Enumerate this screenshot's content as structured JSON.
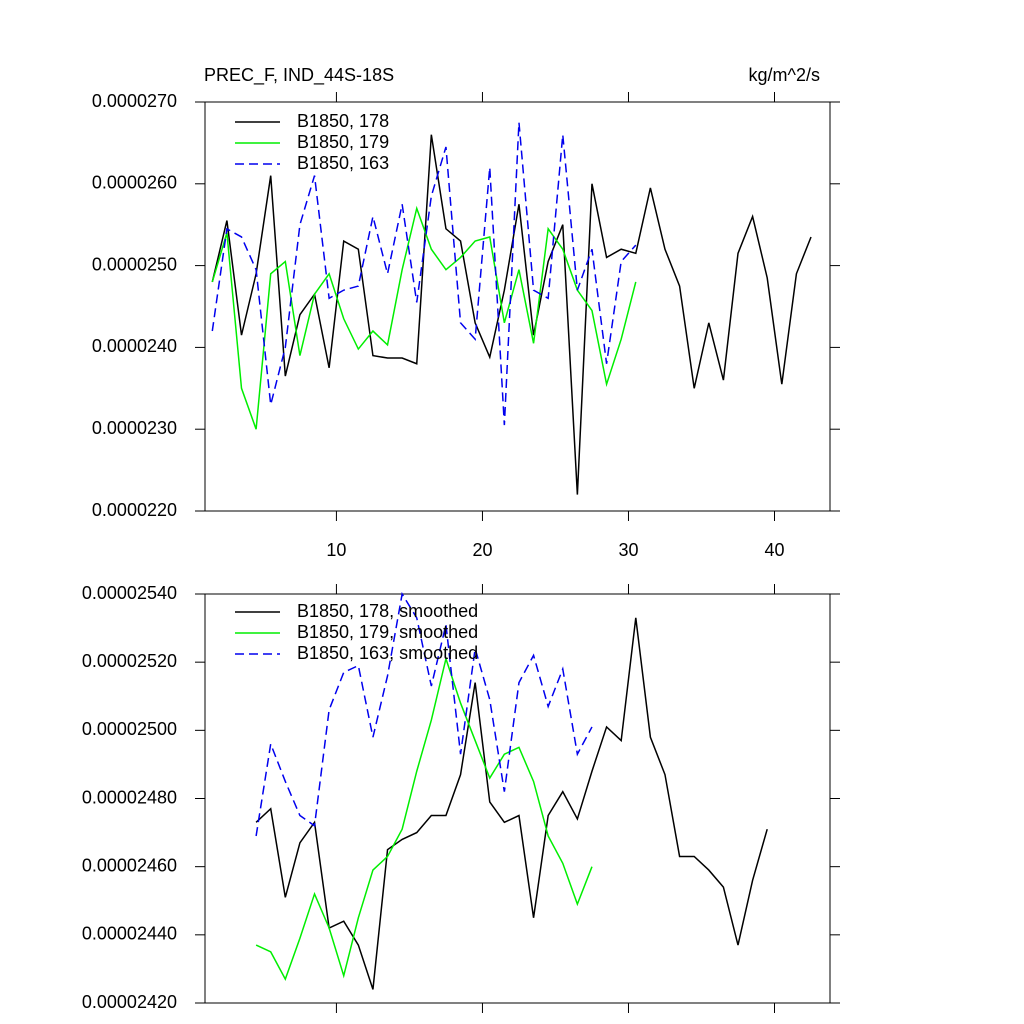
{
  "chart_data": [
    {
      "type": "line",
      "title": "PREC_F, IND_44S-18S",
      "subtitle": "kg/m^2/s",
      "x": [
        1.5,
        2.5,
        3.5,
        4.5,
        5.5,
        6.5,
        7.5,
        8.5,
        9.5,
        10.5,
        11.5,
        12.5,
        13.5,
        14.5,
        15.5,
        16.5,
        17.5,
        18.5,
        19.5,
        20.5,
        21.5,
        22.5,
        23.5,
        24.5,
        25.5,
        26.5,
        27.5,
        28.5,
        29.5,
        30.5,
        31.5,
        32.5,
        33.5,
        34.5,
        35.5,
        36.5,
        37.5,
        38.5,
        39.5,
        40.5,
        41.5,
        42.5
      ],
      "series": [
        {
          "name": "B1850, 178",
          "color": "#000000",
          "line_style": "solid",
          "values": [
            2.48e-05,
            2.555e-05,
            2.415e-05,
            2.49e-05,
            2.61e-05,
            2.365e-05,
            2.44e-05,
            2.465e-05,
            2.375e-05,
            2.53e-05,
            2.52e-05,
            2.39e-05,
            2.387e-05,
            2.387e-05,
            2.38e-05,
            2.66e-05,
            2.545e-05,
            2.53e-05,
            2.43e-05,
            2.388e-05,
            2.47e-05,
            2.575e-05,
            2.415e-05,
            2.505e-05,
            2.55e-05,
            2.22e-05,
            2.6e-05,
            2.51e-05,
            2.52e-05,
            2.515e-05,
            2.595e-05,
            2.52e-05,
            2.475e-05,
            2.35e-05,
            2.43e-05,
            2.36e-05,
            2.515e-05,
            2.56e-05,
            2.485e-05,
            2.355e-05,
            2.49e-05,
            2.535e-05
          ]
        },
        {
          "name": "B1850, 179",
          "color": "#00ee00",
          "line_style": "solid",
          "values": [
            2.48e-05,
            2.54e-05,
            2.35e-05,
            2.3e-05,
            2.49e-05,
            2.505e-05,
            2.39e-05,
            2.465e-05,
            2.49e-05,
            2.435e-05,
            2.398e-05,
            2.42e-05,
            2.403e-05,
            2.495e-05,
            2.57e-05,
            2.52e-05,
            2.495e-05,
            2.51e-05,
            2.53e-05,
            2.535e-05,
            2.43e-05,
            2.495e-05,
            2.405e-05,
            2.545e-05,
            2.52e-05,
            2.47e-05,
            2.445e-05,
            2.355e-05,
            2.41e-05,
            2.48e-05,
            null,
            null,
            null,
            null,
            null,
            null,
            null,
            null,
            null,
            null,
            null,
            null
          ]
        },
        {
          "name": "B1850, 163",
          "color": "#0000ee",
          "line_style": "dashed",
          "values": [
            2.42e-05,
            2.545e-05,
            2.535e-05,
            2.495e-05,
            2.33e-05,
            2.4e-05,
            2.55e-05,
            2.61e-05,
            2.46e-05,
            2.47e-05,
            2.475e-05,
            2.56e-05,
            2.49e-05,
            2.575e-05,
            2.455e-05,
            2.585e-05,
            2.645e-05,
            2.43e-05,
            2.41e-05,
            2.62e-05,
            2.305e-05,
            2.675e-05,
            2.47e-05,
            2.46e-05,
            2.66e-05,
            2.47e-05,
            2.52e-05,
            2.38e-05,
            2.505e-05,
            2.525e-05,
            null,
            null,
            null,
            null,
            null,
            null,
            null,
            null,
            null,
            null,
            null,
            null
          ]
        }
      ],
      "xlim": [
        1,
        43.8
      ],
      "xticks": [
        10,
        20,
        30,
        40
      ],
      "ylim": [
        2.2e-05,
        2.7e-05
      ],
      "yticks": [
        {
          "value": 2.2e-05,
          "label": "0.0000220"
        },
        {
          "value": 2.3e-05,
          "label": "0.0000230"
        },
        {
          "value": 2.4e-05,
          "label": "0.0000240"
        },
        {
          "value": 2.5e-05,
          "label": "0.0000250"
        },
        {
          "value": 2.6e-05,
          "label": "0.0000260"
        },
        {
          "value": 2.7e-05,
          "label": "0.0000270"
        }
      ],
      "legend": "upper left"
    },
    {
      "type": "line",
      "x": [
        4.5,
        5.5,
        6.5,
        7.5,
        8.5,
        9.5,
        10.5,
        11.5,
        12.5,
        13.5,
        14.5,
        15.5,
        16.5,
        17.5,
        18.5,
        19.5,
        20.5,
        21.5,
        22.5,
        23.5,
        24.5,
        25.5,
        26.5,
        27.5,
        28.5,
        29.5,
        30.5,
        31.5,
        32.5,
        33.5,
        34.5,
        35.5,
        36.5,
        37.5,
        38.5,
        39.5
      ],
      "series": [
        {
          "name": "B1850, 178, smoothed",
          "color": "#000000",
          "line_style": "solid",
          "values": [
            2.473e-05,
            2.477e-05,
            2.451e-05,
            2.467e-05,
            2.473e-05,
            2.442e-05,
            2.444e-05,
            2.437e-05,
            2.424e-05,
            2.465e-05,
            2.468e-05,
            2.47e-05,
            2.475e-05,
            2.475e-05,
            2.487e-05,
            2.514e-05,
            2.479e-05,
            2.473e-05,
            2.475e-05,
            2.445e-05,
            2.475e-05,
            2.482e-05,
            2.474e-05,
            2.488e-05,
            2.501e-05,
            2.497e-05,
            2.533e-05,
            2.498e-05,
            2.487e-05,
            2.463e-05,
            2.463e-05,
            2.459e-05,
            2.454e-05,
            2.437e-05,
            2.456e-05,
            2.471e-05
          ]
        },
        {
          "name": "B1850, 179, smoothed",
          "color": "#00ee00",
          "line_style": "solid",
          "values": [
            2.437e-05,
            2.435e-05,
            2.427e-05,
            2.439e-05,
            2.452e-05,
            2.442e-05,
            2.428e-05,
            2.445e-05,
            2.459e-05,
            2.463e-05,
            2.471e-05,
            2.488e-05,
            2.503e-05,
            2.521e-05,
            2.508e-05,
            2.497e-05,
            2.486e-05,
            2.493e-05,
            2.495e-05,
            2.485e-05,
            2.469e-05,
            2.461e-05,
            2.449e-05,
            2.46e-05,
            null,
            null,
            null,
            null,
            null,
            null,
            null,
            null,
            null,
            null,
            null,
            null
          ]
        },
        {
          "name": "B1850, 163, smoothed",
          "color": "#0000ee",
          "line_style": "dashed",
          "values": [
            2.469e-05,
            2.496e-05,
            2.485e-05,
            2.475e-05,
            2.472e-05,
            2.506e-05,
            2.517e-05,
            2.519e-05,
            2.498e-05,
            2.516e-05,
            2.54e-05,
            2.533e-05,
            2.513e-05,
            2.531e-05,
            2.493e-05,
            2.524e-05,
            2.509e-05,
            2.482e-05,
            2.514e-05,
            2.522e-05,
            2.507e-05,
            2.518e-05,
            2.493e-05,
            2.501e-05,
            null,
            null,
            null,
            null,
            null,
            null,
            null,
            null,
            null,
            null,
            null,
            null
          ]
        }
      ],
      "xlim": [
        1,
        43.8
      ],
      "xticks": [
        10,
        20,
        30,
        40
      ],
      "ylim": [
        2.42e-05,
        2.54e-05
      ],
      "yticks": [
        {
          "value": 2.42e-05,
          "label": "0.00002420"
        },
        {
          "value": 2.44e-05,
          "label": "0.00002440"
        },
        {
          "value": 2.46e-05,
          "label": "0.00002460"
        },
        {
          "value": 2.48e-05,
          "label": "0.00002480"
        },
        {
          "value": 2.5e-05,
          "label": "0.00002500"
        },
        {
          "value": 2.52e-05,
          "label": "0.00002520"
        },
        {
          "value": 2.54e-05,
          "label": "0.00002540"
        }
      ],
      "legend": "upper left"
    }
  ]
}
